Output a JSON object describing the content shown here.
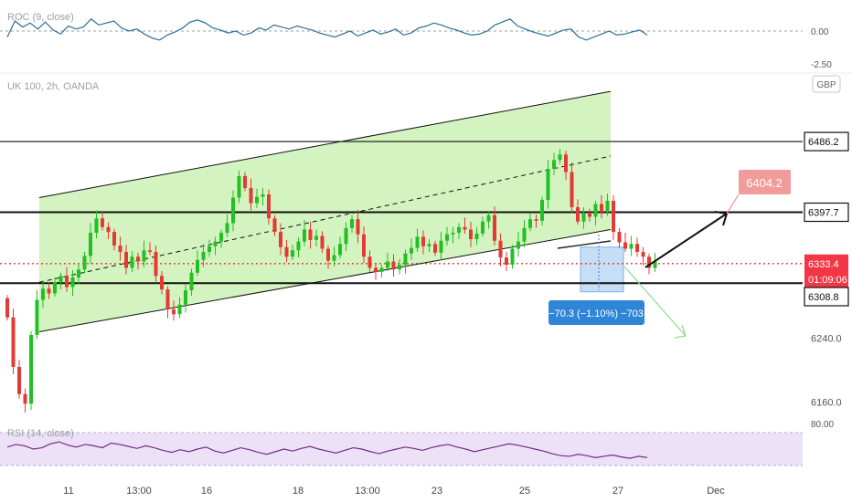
{
  "symbol_label": "UK 100, 2h, OANDA",
  "currency_badge": "GBP",
  "indicators": {
    "roc": {
      "label": "ROC (9, close)",
      "zero_label": "0.00",
      "lower_label": "-2.50"
    },
    "rsi": {
      "label": "RSI (14, close)",
      "upper_label": "80.00"
    }
  },
  "price_axis_labels": [
    {
      "text": "6240.0",
      "price": 6240.0
    },
    {
      "text": "6160.0",
      "price": 6160.0
    }
  ],
  "price_tags": [
    {
      "text": "6486.2",
      "price": 6486.2,
      "style": "black"
    },
    {
      "text": "6397.7",
      "price": 6397.7,
      "style": "black"
    },
    {
      "text": "6333.4",
      "price": 6333.4,
      "style": "red"
    },
    {
      "text": "01:09:06",
      "price": 6314.0,
      "style": "red"
    },
    {
      "text": "6308.8",
      "price": 6292.0,
      "style": "black"
    }
  ],
  "annotations": {
    "target_label": "6404.2",
    "measure_label": "−70.3 (−1.10%) −703"
  },
  "time_axis": [
    {
      "text": "11",
      "x": 75
    },
    {
      "text": "13:00",
      "x": 152
    },
    {
      "text": "16",
      "x": 226
    },
    {
      "text": "18",
      "x": 326
    },
    {
      "text": "13:00",
      "x": 402
    },
    {
      "text": "23",
      "x": 478
    },
    {
      "text": "25",
      "x": 574
    },
    {
      "text": "27",
      "x": 676
    },
    {
      "text": "Dec",
      "x": 783
    }
  ],
  "colors": {
    "up": "#26a69a",
    "up_bright": "#22c022",
    "down": "#e53935",
    "channel_fill": "#c8f0b0",
    "measure_fill": "#bcd8f5",
    "measure_label_bg": "#2f86d6",
    "target_bg": "#f29b9b",
    "roc_line": "#2a6f97",
    "rsi_line": "#7b2a8a",
    "rsi_band": "#ece1f6"
  },
  "chart_data": {
    "type": "candlestick",
    "series_name": "UK 100, 2h, OANDA",
    "interval": "2h",
    "ylim": [
      6140,
      6540
    ],
    "horizontal_levels": [
      6486.2,
      6397.7,
      6308.8
    ],
    "current_price_line": 6333.4,
    "channel": {
      "upper": [
        {
          "bar": 0,
          "price": 6416
        },
        {
          "bar": 108,
          "price": 6549
        }
      ],
      "middle": [
        {
          "bar": 0,
          "price": 6310
        },
        {
          "bar": 108,
          "price": 6468
        }
      ],
      "lower": [
        {
          "bar": 0,
          "price": 6248
        },
        {
          "bar": 108,
          "price": 6376
        }
      ]
    },
    "closes": [
      6266,
      6204,
      6170,
      6158,
      6244,
      6288,
      6302,
      6296,
      6310,
      6318,
      6304,
      6316,
      6326,
      6343,
      6372,
      6390,
      6379,
      6373,
      6356,
      6348,
      6328,
      6342,
      6336,
      6350,
      6348,
      6318,
      6301,
      6276,
      6270,
      6282,
      6300,
      6322,
      6338,
      6348,
      6355,
      6361,
      6372,
      6384,
      6416,
      6443,
      6428,
      6409,
      6417,
      6420,
      6390,
      6373,
      6354,
      6342,
      6350,
      6361,
      6376,
      6363,
      6368,
      6352,
      6337,
      6344,
      6358,
      6378,
      6389,
      6370,
      6342,
      6328,
      6323,
      6328,
      6336,
      6326,
      6332,
      6346,
      6353,
      6367,
      6355,
      6358,
      6347,
      6362,
      6370,
      6372,
      6379,
      6376,
      6364,
      6371,
      6386,
      6394,
      6362,
      6341,
      6332,
      6352,
      6361,
      6378,
      6389,
      6387,
      6413,
      6452,
      6463,
      6470,
      6448,
      6404,
      6386,
      6396,
      6392,
      6408,
      6398,
      6412,
      6373,
      6360,
      6352,
      6358,
      6348,
      6342,
      6328,
      6336
    ],
    "roc": [
      -0.6,
      1.0,
      0.4,
      0.8,
      0.2,
      0.9,
      0.1,
      -0.3,
      0.5,
      0.2,
      0.4,
      1.2,
      0.6,
      0.8,
      1.0,
      0.3,
      0.0,
      0.2,
      -0.3,
      -0.7,
      -0.9,
      -0.4,
      -0.1,
      0.3,
      0.9,
      1.1,
      0.8,
      0.3,
      0.1,
      -0.2,
      0.0,
      -0.4,
      -0.2,
      0.3,
      0.1,
      0.6,
      0.4,
      0.2,
      0.5,
      0.3,
      0.1,
      -0.2,
      -0.4,
      -0.6,
      -0.3,
      0.0,
      -0.5,
      -0.2,
      0.1,
      -0.3,
      -0.1,
      0.2,
      -0.4,
      -0.2,
      0.3,
      0.5,
      0.8,
      0.6,
      0.3,
      0.1,
      -0.2,
      -0.4,
      -0.3,
      0.0,
      0.6,
      0.9,
      1.2,
      0.5,
      0.2,
      -0.1,
      -0.3,
      -0.5,
      -0.2,
      0.1,
      0.2,
      -0.6,
      -0.9,
      -0.6,
      -0.3,
      0.0,
      -0.4,
      -0.3,
      -0.1,
      0.1,
      -0.4
    ],
    "rsi": [
      58,
      62,
      60,
      55,
      57,
      63,
      66,
      61,
      58,
      62,
      60,
      57,
      64,
      62,
      59,
      56,
      60,
      57,
      53,
      50,
      54,
      51,
      55,
      58,
      52,
      49,
      53,
      57,
      54,
      50,
      47,
      51,
      55,
      52,
      56,
      59,
      55,
      52,
      49,
      53,
      57,
      55,
      51,
      48,
      52,
      55,
      58,
      56,
      53,
      57,
      60,
      62,
      58,
      55,
      51,
      54,
      57,
      60,
      63,
      61,
      58,
      55,
      52,
      48,
      45,
      44,
      47,
      45,
      42,
      44,
      46,
      43,
      41,
      44,
      42
    ],
    "measure_box": {
      "from_bar": 98,
      "to_bar": 104,
      "top_price": 6354,
      "bottom_price": 6298
    },
    "projection_target": 6404.2
  }
}
